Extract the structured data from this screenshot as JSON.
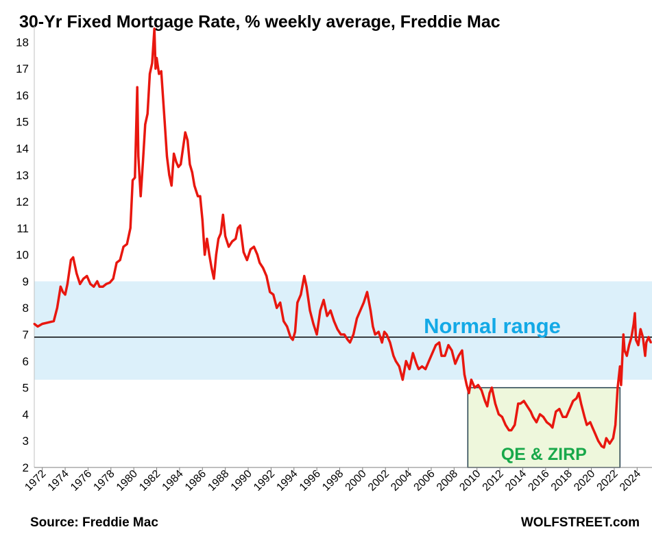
{
  "chart_data": {
    "type": "line",
    "title": "30-Yr Fixed Mortgage Rate, % weekly average, Freddie Mac",
    "xlabel": "",
    "ylabel": "",
    "ylim": [
      2,
      18.6
    ],
    "xlim": [
      1971.3,
      2025.3
    ],
    "yticks": [
      2,
      3,
      4,
      5,
      6,
      7,
      8,
      9,
      10,
      11,
      12,
      13,
      14,
      15,
      16,
      17,
      18
    ],
    "xticks": [
      "1972",
      "1974",
      "1976",
      "1978",
      "1980",
      "1982",
      "1984",
      "1986",
      "1988",
      "1990",
      "1992",
      "1994",
      "1996",
      "1998",
      "2000",
      "2002",
      "2004",
      "2006",
      "2008",
      "2010",
      "2012",
      "2014",
      "2016",
      "2018",
      "2020",
      "2022",
      "2024"
    ],
    "grid": false,
    "colors": {
      "line": "#e8170f",
      "normal_band": "#dcf0fa",
      "qe_box_fill": "#eef7dc",
      "qe_box_border": "#1f3b4a",
      "normal_text": "#13a9e6",
      "qe_text": "#18a84a"
    },
    "series": [
      {
        "values": [
          [
            1971.3,
            7.4
          ],
          [
            1971.6,
            7.3
          ],
          [
            1972.0,
            7.4
          ],
          [
            1972.5,
            7.45
          ],
          [
            1973.0,
            7.5
          ],
          [
            1973.3,
            8.0
          ],
          [
            1973.6,
            8.8
          ],
          [
            1973.8,
            8.6
          ],
          [
            1974.0,
            8.5
          ],
          [
            1974.2,
            8.9
          ],
          [
            1974.5,
            9.8
          ],
          [
            1974.7,
            9.9
          ],
          [
            1975.0,
            9.3
          ],
          [
            1975.3,
            8.9
          ],
          [
            1975.6,
            9.1
          ],
          [
            1975.9,
            9.2
          ],
          [
            1976.2,
            8.9
          ],
          [
            1976.5,
            8.8
          ],
          [
            1976.8,
            9.0
          ],
          [
            1977.0,
            8.8
          ],
          [
            1977.3,
            8.8
          ],
          [
            1977.6,
            8.9
          ],
          [
            1977.9,
            8.95
          ],
          [
            1978.2,
            9.1
          ],
          [
            1978.5,
            9.7
          ],
          [
            1978.8,
            9.8
          ],
          [
            1979.1,
            10.3
          ],
          [
            1979.4,
            10.4
          ],
          [
            1979.7,
            11.0
          ],
          [
            1979.9,
            12.8
          ],
          [
            1980.1,
            12.9
          ],
          [
            1980.3,
            16.3
          ],
          [
            1980.4,
            13.7
          ],
          [
            1980.6,
            12.2
          ],
          [
            1980.8,
            13.5
          ],
          [
            1981.0,
            14.9
          ],
          [
            1981.2,
            15.3
          ],
          [
            1981.4,
            16.8
          ],
          [
            1981.6,
            17.2
          ],
          [
            1981.8,
            18.5
          ],
          [
            1981.9,
            17.0
          ],
          [
            1982.0,
            17.4
          ],
          [
            1982.2,
            16.8
          ],
          [
            1982.4,
            16.9
          ],
          [
            1982.7,
            15.0
          ],
          [
            1982.9,
            13.7
          ],
          [
            1983.1,
            13.0
          ],
          [
            1983.3,
            12.6
          ],
          [
            1983.5,
            13.8
          ],
          [
            1983.7,
            13.5
          ],
          [
            1983.9,
            13.3
          ],
          [
            1984.1,
            13.4
          ],
          [
            1984.3,
            14.0
          ],
          [
            1984.5,
            14.6
          ],
          [
            1984.7,
            14.3
          ],
          [
            1984.9,
            13.4
          ],
          [
            1985.1,
            13.1
          ],
          [
            1985.3,
            12.6
          ],
          [
            1985.6,
            12.2
          ],
          [
            1985.8,
            12.2
          ],
          [
            1986.0,
            11.3
          ],
          [
            1986.2,
            10.0
          ],
          [
            1986.4,
            10.6
          ],
          [
            1986.6,
            10.0
          ],
          [
            1986.8,
            9.5
          ],
          [
            1987.0,
            9.1
          ],
          [
            1987.2,
            10.0
          ],
          [
            1987.4,
            10.6
          ],
          [
            1987.6,
            10.8
          ],
          [
            1987.8,
            11.5
          ],
          [
            1988.0,
            10.7
          ],
          [
            1988.3,
            10.3
          ],
          [
            1988.6,
            10.5
          ],
          [
            1988.9,
            10.6
          ],
          [
            1989.1,
            11.0
          ],
          [
            1989.3,
            11.1
          ],
          [
            1989.6,
            10.1
          ],
          [
            1989.9,
            9.8
          ],
          [
            1990.2,
            10.2
          ],
          [
            1990.5,
            10.3
          ],
          [
            1990.8,
            10.0
          ],
          [
            1991.0,
            9.7
          ],
          [
            1991.3,
            9.5
          ],
          [
            1991.6,
            9.2
          ],
          [
            1991.9,
            8.6
          ],
          [
            1992.2,
            8.5
          ],
          [
            1992.5,
            8.0
          ],
          [
            1992.8,
            8.2
          ],
          [
            1993.1,
            7.5
          ],
          [
            1993.4,
            7.3
          ],
          [
            1993.7,
            6.9
          ],
          [
            1993.9,
            6.8
          ],
          [
            1994.1,
            7.1
          ],
          [
            1994.3,
            8.2
          ],
          [
            1994.6,
            8.5
          ],
          [
            1994.9,
            9.2
          ],
          [
            1995.1,
            8.8
          ],
          [
            1995.4,
            7.9
          ],
          [
            1995.7,
            7.4
          ],
          [
            1996.0,
            7.0
          ],
          [
            1996.3,
            7.9
          ],
          [
            1996.6,
            8.3
          ],
          [
            1996.9,
            7.7
          ],
          [
            1997.2,
            7.9
          ],
          [
            1997.5,
            7.5
          ],
          [
            1997.8,
            7.2
          ],
          [
            1998.1,
            7.0
          ],
          [
            1998.4,
            7.0
          ],
          [
            1998.7,
            6.8
          ],
          [
            1998.9,
            6.7
          ],
          [
            1999.2,
            7.0
          ],
          [
            1999.5,
            7.6
          ],
          [
            1999.8,
            7.9
          ],
          [
            2000.1,
            8.2
          ],
          [
            2000.4,
            8.6
          ],
          [
            2000.7,
            7.9
          ],
          [
            2000.9,
            7.3
          ],
          [
            2001.1,
            7.0
          ],
          [
            2001.4,
            7.1
          ],
          [
            2001.7,
            6.7
          ],
          [
            2001.9,
            7.1
          ],
          [
            2002.1,
            7.0
          ],
          [
            2002.4,
            6.7
          ],
          [
            2002.7,
            6.2
          ],
          [
            2002.9,
            6.0
          ],
          [
            2003.2,
            5.8
          ],
          [
            2003.5,
            5.3
          ],
          [
            2003.8,
            6.0
          ],
          [
            2004.1,
            5.7
          ],
          [
            2004.4,
            6.3
          ],
          [
            2004.7,
            5.9
          ],
          [
            2004.9,
            5.7
          ],
          [
            2005.2,
            5.8
          ],
          [
            2005.5,
            5.7
          ],
          [
            2005.8,
            6.0
          ],
          [
            2006.1,
            6.3
          ],
          [
            2006.4,
            6.6
          ],
          [
            2006.7,
            6.7
          ],
          [
            2006.9,
            6.2
          ],
          [
            2007.2,
            6.2
          ],
          [
            2007.5,
            6.6
          ],
          [
            2007.8,
            6.4
          ],
          [
            2008.1,
            5.9
          ],
          [
            2008.4,
            6.2
          ],
          [
            2008.7,
            6.4
          ],
          [
            2008.9,
            5.5
          ],
          [
            2009.1,
            5.1
          ],
          [
            2009.3,
            4.8
          ],
          [
            2009.5,
            5.3
          ],
          [
            2009.8,
            5.0
          ],
          [
            2010.1,
            5.1
          ],
          [
            2010.4,
            4.9
          ],
          [
            2010.7,
            4.5
          ],
          [
            2010.9,
            4.3
          ],
          [
            2011.1,
            4.8
          ],
          [
            2011.3,
            5.0
          ],
          [
            2011.6,
            4.4
          ],
          [
            2011.9,
            4.0
          ],
          [
            2012.2,
            3.9
          ],
          [
            2012.5,
            3.6
          ],
          [
            2012.8,
            3.4
          ],
          [
            2013.0,
            3.4
          ],
          [
            2013.3,
            3.6
          ],
          [
            2013.6,
            4.4
          ],
          [
            2013.8,
            4.4
          ],
          [
            2014.1,
            4.5
          ],
          [
            2014.4,
            4.3
          ],
          [
            2014.7,
            4.1
          ],
          [
            2014.9,
            3.9
          ],
          [
            2015.2,
            3.7
          ],
          [
            2015.5,
            4.0
          ],
          [
            2015.8,
            3.9
          ],
          [
            2016.1,
            3.7
          ],
          [
            2016.4,
            3.6
          ],
          [
            2016.6,
            3.5
          ],
          [
            2016.9,
            4.1
          ],
          [
            2017.2,
            4.2
          ],
          [
            2017.5,
            3.9
          ],
          [
            2017.8,
            3.9
          ],
          [
            2018.1,
            4.2
          ],
          [
            2018.4,
            4.5
          ],
          [
            2018.7,
            4.6
          ],
          [
            2018.9,
            4.8
          ],
          [
            2019.1,
            4.4
          ],
          [
            2019.4,
            3.9
          ],
          [
            2019.6,
            3.6
          ],
          [
            2019.9,
            3.7
          ],
          [
            2020.1,
            3.5
          ],
          [
            2020.3,
            3.3
          ],
          [
            2020.6,
            3.0
          ],
          [
            2020.9,
            2.8
          ],
          [
            2021.1,
            2.75
          ],
          [
            2021.3,
            3.1
          ],
          [
            2021.6,
            2.9
          ],
          [
            2021.9,
            3.1
          ],
          [
            2022.1,
            3.6
          ],
          [
            2022.3,
            5.0
          ],
          [
            2022.5,
            5.8
          ],
          [
            2022.6,
            5.1
          ],
          [
            2022.8,
            7.0
          ],
          [
            2022.9,
            6.4
          ],
          [
            2023.1,
            6.2
          ],
          [
            2023.3,
            6.6
          ],
          [
            2023.5,
            6.9
          ],
          [
            2023.7,
            7.4
          ],
          [
            2023.8,
            7.8
          ],
          [
            2023.9,
            6.8
          ],
          [
            2024.1,
            6.6
          ],
          [
            2024.3,
            7.2
          ],
          [
            2024.5,
            6.9
          ],
          [
            2024.7,
            6.2
          ],
          [
            2024.8,
            6.7
          ],
          [
            2025.0,
            6.9
          ],
          [
            2025.2,
            6.7
          ]
        ]
      }
    ],
    "annotations": [
      {
        "label": "Normal range",
        "band_y": [
          5.3,
          9.0
        ]
      },
      {
        "label": "QE & ZIRP",
        "box_x": [
          2009.2,
          2022.5
        ],
        "box_y": [
          2,
          5.0
        ]
      }
    ],
    "reference_line": {
      "y": 6.9,
      "color": "#000000"
    }
  },
  "footer": {
    "source": "Source: Freddie Mac",
    "brand": "WOLFSTREET.com"
  }
}
